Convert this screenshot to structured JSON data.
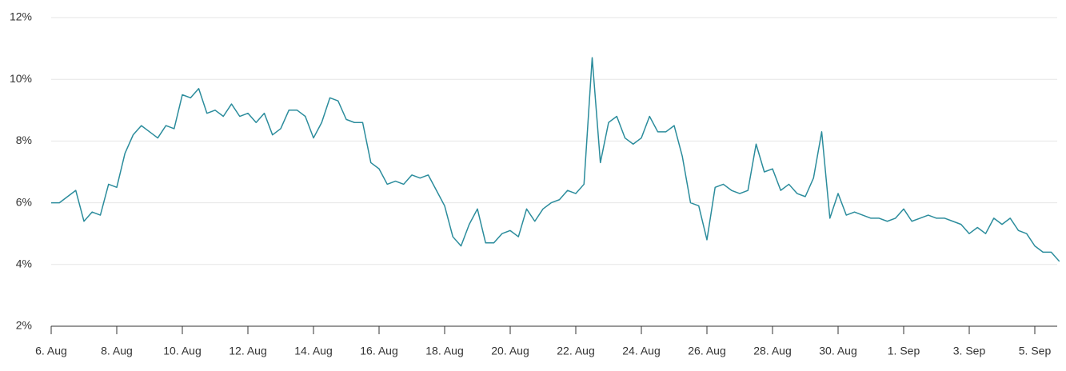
{
  "chart_data": {
    "type": "line",
    "categories": [
      "6. Aug",
      null,
      null,
      null,
      null,
      null,
      null,
      null,
      "8. Aug",
      null,
      null,
      null,
      null,
      null,
      null,
      null,
      "10. Aug",
      null,
      null,
      null,
      null,
      null,
      null,
      null,
      "12. Aug",
      null,
      null,
      null,
      null,
      null,
      null,
      null,
      "14. Aug",
      null,
      null,
      null,
      null,
      null,
      null,
      null,
      "16. Aug",
      null,
      null,
      null,
      null,
      null,
      null,
      null,
      "18. Aug",
      null,
      null,
      null,
      null,
      null,
      null,
      null,
      "20. Aug",
      null,
      null,
      null,
      null,
      null,
      null,
      null,
      "22. Aug",
      null,
      null,
      null,
      null,
      null,
      null,
      null,
      "24. Aug",
      null,
      null,
      null,
      null,
      null,
      null,
      null,
      "26. Aug",
      null,
      null,
      null,
      null,
      null,
      null,
      null,
      "28. Aug",
      null,
      null,
      null,
      null,
      null,
      null,
      null,
      "30. Aug",
      null,
      null,
      null,
      null,
      null,
      null,
      null,
      "1. Sep",
      null,
      null,
      null,
      null,
      null,
      null,
      null,
      "3. Sep",
      null,
      null,
      null,
      null,
      null,
      null,
      null,
      "5. Sep",
      null,
      null,
      null
    ],
    "series": [
      {
        "color": "#2b8c9c",
        "values": [
          6.0,
          6.0,
          6.2,
          6.4,
          5.4,
          5.7,
          5.6,
          6.6,
          6.5,
          7.6,
          8.2,
          8.5,
          8.3,
          8.1,
          8.5,
          8.4,
          9.5,
          9.4,
          9.7,
          8.9,
          9.0,
          8.8,
          9.2,
          8.8,
          8.9,
          8.6,
          8.9,
          8.2,
          8.4,
          9.0,
          9.0,
          8.8,
          8.1,
          8.6,
          9.4,
          9.3,
          8.7,
          8.6,
          8.6,
          7.3,
          7.1,
          6.6,
          6.7,
          6.6,
          6.9,
          6.8,
          6.9,
          6.4,
          5.9,
          4.9,
          4.6,
          5.3,
          5.8,
          4.7,
          4.7,
          5.0,
          5.1,
          4.9,
          5.8,
          5.4,
          5.8,
          6.0,
          6.1,
          6.4,
          6.3,
          6.6,
          10.7,
          7.3,
          8.6,
          8.8,
          8.1,
          7.9,
          8.1,
          8.8,
          8.3,
          8.3,
          8.5,
          7.5,
          6.0,
          5.9,
          4.8,
          6.5,
          6.6,
          6.4,
          6.3,
          6.4,
          7.9,
          7.0,
          7.1,
          6.4,
          6.6,
          6.3,
          6.2,
          6.8,
          8.3,
          5.5,
          6.3,
          5.6,
          5.7,
          5.6,
          5.5,
          5.5,
          5.4,
          5.5,
          5.8,
          5.4,
          5.5,
          5.6,
          5.5,
          5.5,
          5.4,
          5.3,
          5.0,
          5.2,
          5.0,
          5.5,
          5.3,
          5.5,
          5.1,
          5.0,
          4.6,
          4.4,
          4.4,
          4.1
        ]
      }
    ],
    "ylim": [
      2,
      12
    ],
    "yticks": [
      {
        "value": 2,
        "label": "2%"
      },
      {
        "value": 4,
        "label": "4%"
      },
      {
        "value": 6,
        "label": "6%"
      },
      {
        "value": 8,
        "label": "8%"
      },
      {
        "value": 10,
        "label": "10%"
      },
      {
        "value": 12,
        "label": "12%"
      }
    ],
    "grid": true
  }
}
